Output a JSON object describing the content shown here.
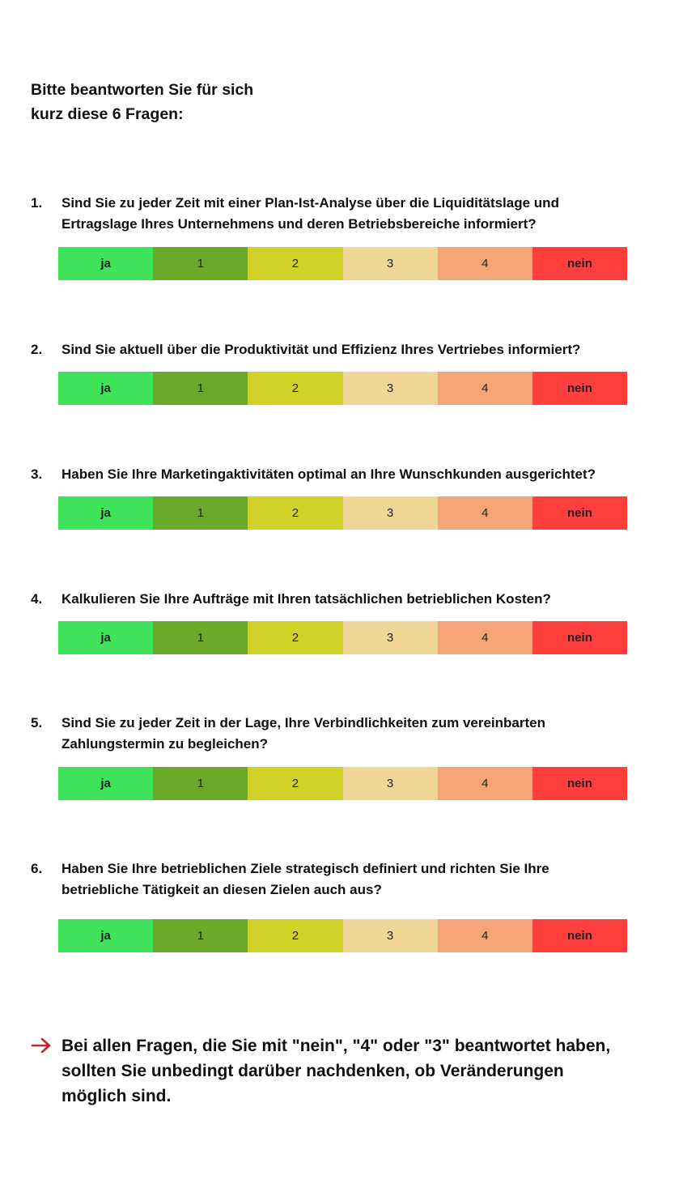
{
  "intro": {
    "line1": "Bitte beantworten Sie für sich",
    "line2": "kurz diese 6 Fragen:"
  },
  "scale": {
    "labels": [
      "ja",
      "1",
      "2",
      "3",
      "4",
      "nein"
    ],
    "colors": [
      "#3ee35a",
      "#6aa92a",
      "#d1d227",
      "#efd596",
      "#f5a475",
      "#ff3e3e"
    ]
  },
  "questions": [
    {
      "number": "1.",
      "line1": "Sind Sie zu jeder Zeit mit einer Plan-Ist-Analyse über die Liquiditätslage und",
      "line2": "Ertragslage Ihres Unternehmens und deren Betriebsbereiche informiert?"
    },
    {
      "number": "2.",
      "line1": "Sind Sie aktuell über die Produktivität und Effizienz Ihres Vertriebes informiert?",
      "line2": ""
    },
    {
      "number": "3.",
      "line1": "Haben Sie Ihre Marketingaktivitäten optimal an Ihre Wunschkunden ausgerichtet?",
      "line2": ""
    },
    {
      "number": "4.",
      "line1": "Kalkulieren Sie Ihre Aufträge mit Ihren tatsächlichen betrieblichen Kosten?",
      "line2": ""
    },
    {
      "number": "5.",
      "line1": "Sind Sie zu jeder Zeit in der Lage, Ihre Verbindlichkeiten zum vereinbarten",
      "line2": "Zahlungstermin zu begleichen?"
    },
    {
      "number": "6.",
      "line1": "Haben Sie Ihre betrieblichen Ziele strategisch definiert und richten Sie Ihre",
      "line2": "betriebliche Tätigkeit an diesen Zielen auch aus?"
    }
  ],
  "note": {
    "icon": "arrow-right-icon",
    "arrow_color": "#c0272d",
    "line1": "Bei allen Fragen, die Sie mit \"nein\", \"4\" oder \"3\" beantwortet haben,",
    "line2": "sollten Sie unbedingt darüber nachdenken, ob Veränderungen",
    "line3": "möglich sind."
  }
}
